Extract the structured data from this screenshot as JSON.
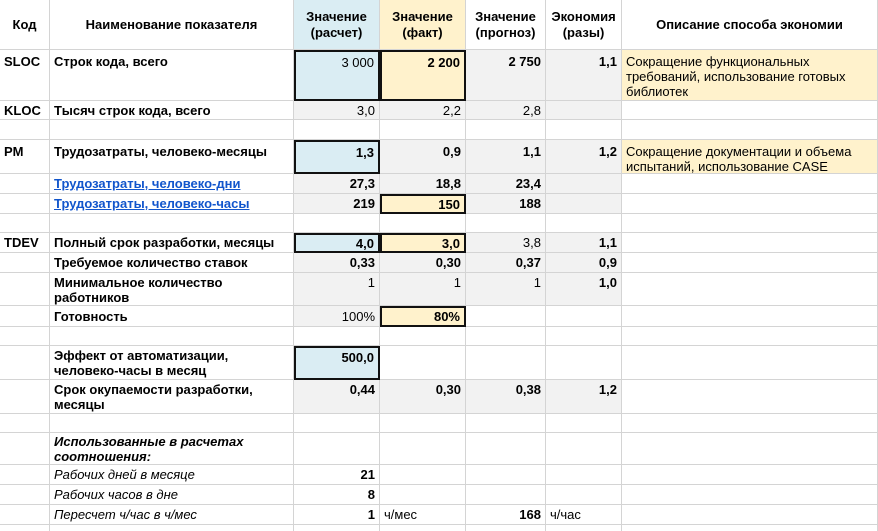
{
  "headers": {
    "code": "Код",
    "name": "Наименование показателя",
    "calc": "Значение (расчет)",
    "fact": "Значение (факт)",
    "forecast": "Значение (прогноз)",
    "economy": "Экономия (разы)",
    "description": "Описание способа экономии"
  },
  "rows": {
    "sloc": {
      "code": "SLOC",
      "name": "Строк кода, всего",
      "calc": "3 000",
      "fact": "2 200",
      "forecast": "2 750",
      "economy": "1,1",
      "description": "Сокращение функциональных требований, использование готовых библиотек"
    },
    "kloc": {
      "code": "KLOC",
      "name": "Тысяч строк кода, всего",
      "calc": "3,0",
      "fact": "2,2",
      "forecast": "2,8"
    },
    "pm": {
      "code": "PM",
      "name": "Трудозатраты, человеко-месяцы",
      "calc": "1,3",
      "fact": "0,9",
      "forecast": "1,1",
      "economy": "1,2",
      "description": "Сокращение документации и объема испытаний, использование CASE"
    },
    "days": {
      "name": "Трудозатраты, человеко-дни",
      "calc": "27,3",
      "fact": "18,8",
      "forecast": "23,4"
    },
    "hours": {
      "name": "Трудозатраты, человеко-часы",
      "calc": "219",
      "fact": "150",
      "forecast": "188"
    },
    "tdev": {
      "code": "TDEV",
      "name": "Полный срок разработки, месяцы",
      "calc": "4,0",
      "fact": "3,0",
      "forecast": "3,8",
      "economy": "1,1"
    },
    "rates": {
      "name": "Требуемое количество ставок",
      "calc": "0,33",
      "fact": "0,30",
      "forecast": "0,37",
      "economy": "0,9"
    },
    "workers": {
      "name": "Минимальное количество работников",
      "calc": "1",
      "fact": "1",
      "forecast": "1",
      "economy": "1,0"
    },
    "ready": {
      "name": "Готовность",
      "calc": "100%",
      "fact": "80%"
    },
    "effect": {
      "name": "Эффект от автоматизации, человеко-часы в месяц",
      "calc": "500,0"
    },
    "payback": {
      "name": "Срок окупаемости разработки, месяцы",
      "calc": "0,44",
      "fact": "0,30",
      "forecast": "0,38",
      "economy": "1,2"
    }
  },
  "ratios": {
    "title": "Использованные в расчетах соотношения:",
    "work_days": {
      "label": "Рабочих дней в месяце",
      "value": "21"
    },
    "work_hours": {
      "label": "Рабочих часов в дне",
      "value": "8"
    },
    "conversion": {
      "label": "Пересчет ч/час в ч/мес",
      "value1": "1",
      "unit1": "ч/мес",
      "value2": "168",
      "unit2": "ч/час"
    }
  },
  "colors": {
    "blue_fill": "#daedf3",
    "yellow_fill": "#fff2cc",
    "gray_fill": "#f2f2f2",
    "link": "#1155cc"
  }
}
